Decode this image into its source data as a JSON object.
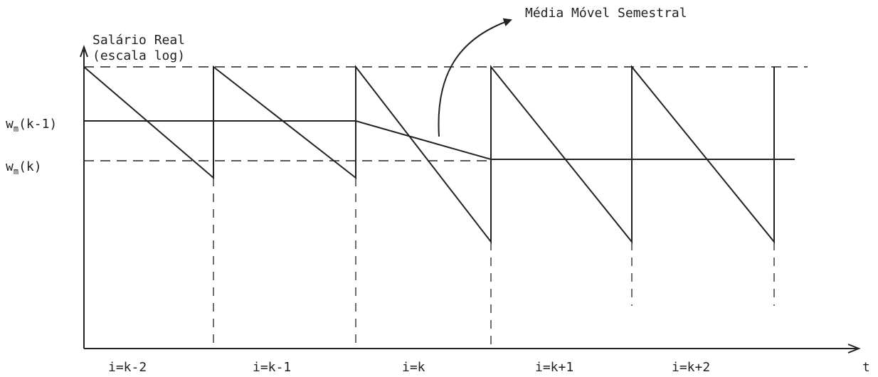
{
  "diagram": {
    "y_axis_label_line1": "Salário Real",
    "y_axis_label_line2": "(escala log)",
    "x_axis_label": "t",
    "level_high_label": {
      "base": "w",
      "sub": "m",
      "arg": "(k-1)"
    },
    "level_low_label": {
      "base": "w",
      "sub": "m",
      "arg": "(k)"
    },
    "moving_average_label": "Média Móvel Semestral",
    "periods": [
      "i=k-2",
      "i=k-1",
      "i=k",
      "i=k+1",
      "i=k+2"
    ]
  }
}
